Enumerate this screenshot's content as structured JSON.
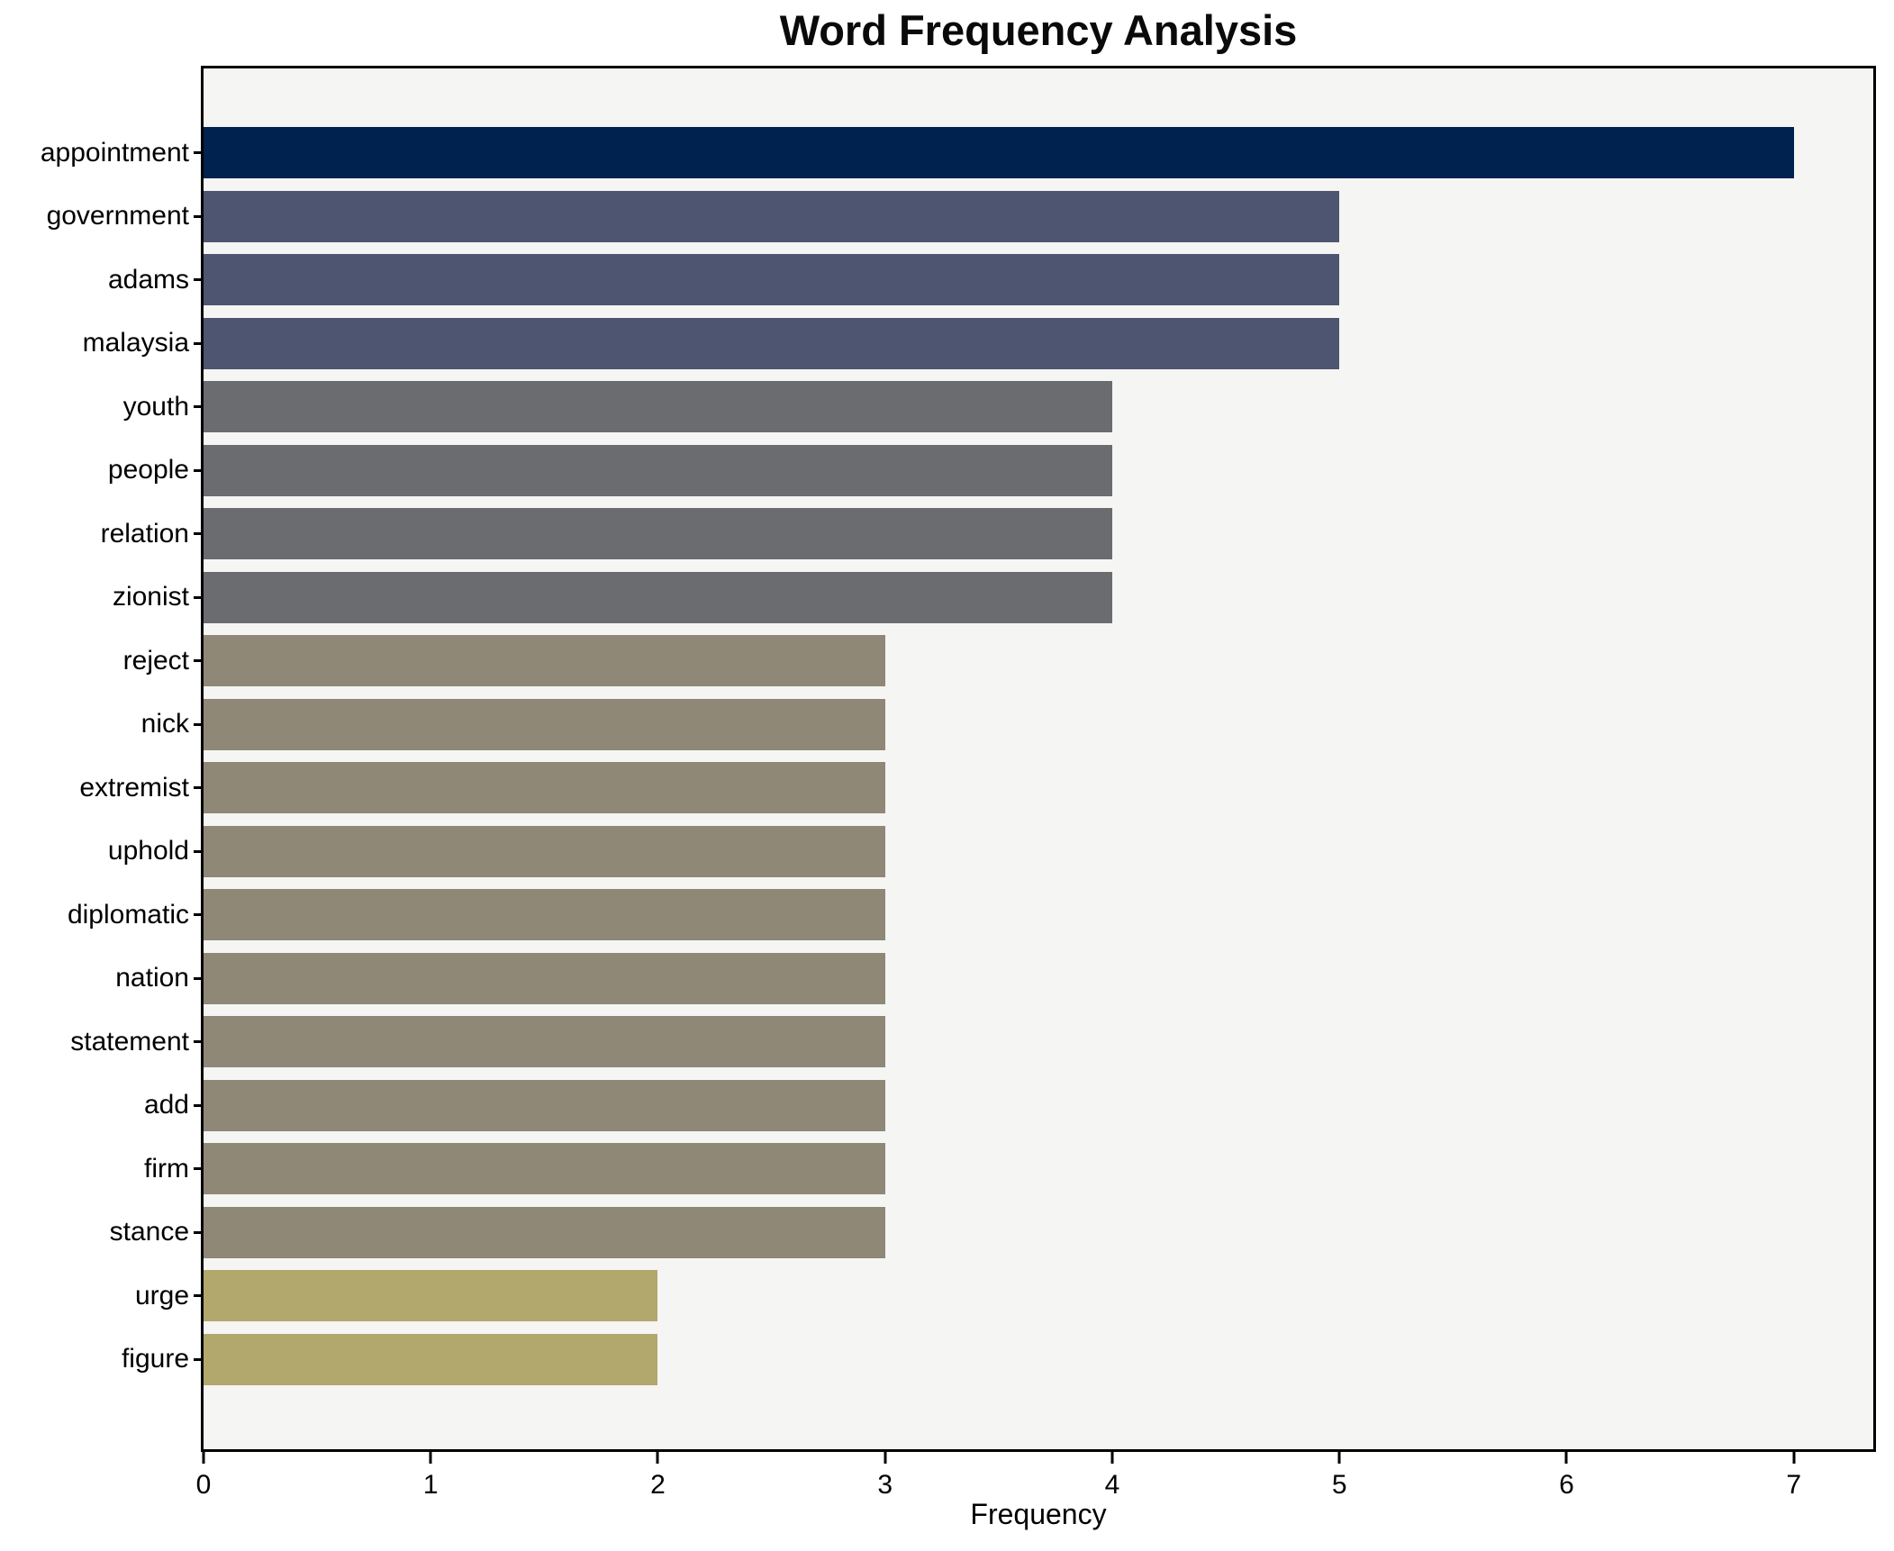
{
  "chart_data": {
    "type": "bar",
    "orientation": "horizontal",
    "title": "Word Frequency Analysis",
    "xlabel": "Frequency",
    "ylabel": "",
    "grid": false,
    "legend": false,
    "xlim": [
      0,
      7.35
    ],
    "x_ticks": [
      0,
      1,
      2,
      3,
      4,
      5,
      6,
      7
    ],
    "plot_background": "#f5f5f4",
    "figure_background": "#ffffff",
    "categories": [
      "appointment",
      "government",
      "adams",
      "malaysia",
      "youth",
      "people",
      "relation",
      "zionist",
      "reject",
      "nick",
      "extremist",
      "uphold",
      "diplomatic",
      "nation",
      "statement",
      "add",
      "firm",
      "stance",
      "urge",
      "figure"
    ],
    "values": [
      7,
      5,
      5,
      5,
      4,
      4,
      4,
      4,
      3,
      3,
      3,
      3,
      3,
      3,
      3,
      3,
      3,
      3,
      2,
      2
    ],
    "bar_colors": [
      "#00224e",
      "#4e5571",
      "#4e5571",
      "#4e5571",
      "#6b6c6f",
      "#6b6c6f",
      "#6b6c6f",
      "#6b6c6f",
      "#8f8877",
      "#8f8877",
      "#8f8877",
      "#8f8877",
      "#8f8877",
      "#8f8877",
      "#8f8877",
      "#8f8877",
      "#8f8877",
      "#8f8877",
      "#b2a76d",
      "#b2a76d"
    ],
    "value_color_legend": {
      "7": "#00224e",
      "5": "#4e5571",
      "4": "#6b6c6f",
      "3": "#8f8877",
      "2": "#b2a76d"
    }
  }
}
